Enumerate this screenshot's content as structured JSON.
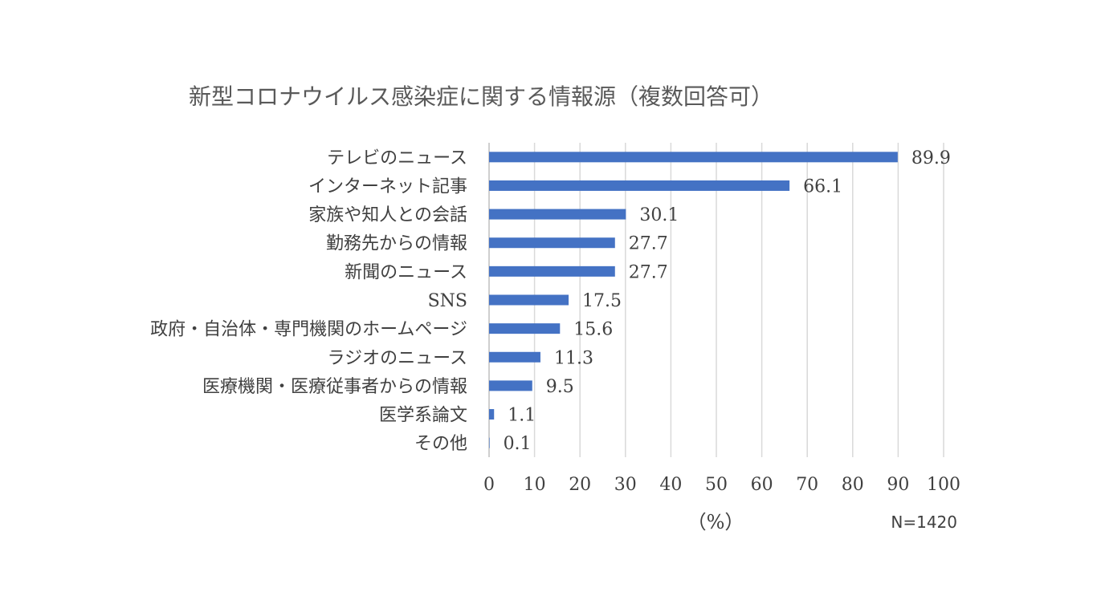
{
  "chart_data": {
    "type": "bar",
    "orientation": "horizontal",
    "title": "新型コロナウイルス感染症に関する情報源（複数回答可）",
    "categories": [
      "テレビのニュース",
      "インターネット記事",
      "家族や知人との会話",
      "勤務先からの情報",
      "新聞のニュース",
      "SNS",
      "政府・自治体・専門機関のホームページ",
      "ラジオのニュース",
      "医療機関・医療従事者からの情報",
      "医学系論文",
      "その他"
    ],
    "values": [
      89.9,
      66.1,
      30.1,
      27.7,
      27.7,
      17.5,
      15.6,
      11.3,
      9.5,
      1.1,
      0.1
    ],
    "value_labels": [
      "89.9",
      "66.1",
      "30.1",
      "27.7",
      "27.7",
      "17.5",
      "15.6",
      "11.3",
      "9.5",
      "1.1",
      "0.1"
    ],
    "xlim": [
      0,
      100
    ],
    "xticks": [
      0,
      10,
      20,
      30,
      40,
      50,
      60,
      70,
      80,
      90,
      100
    ],
    "xlabel": "（%）",
    "note": "N=1420",
    "grid": true,
    "bar_color": "#4472c4"
  }
}
